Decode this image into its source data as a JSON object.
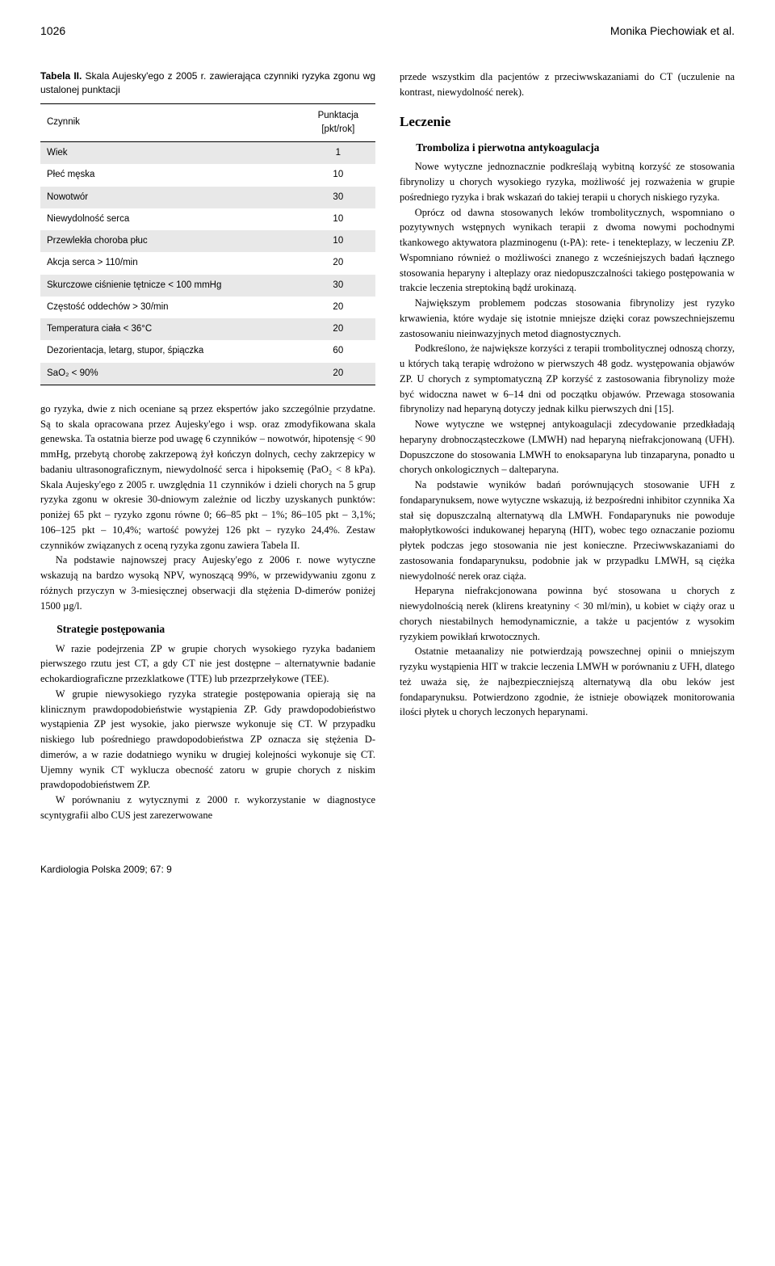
{
  "header": {
    "page_number": "1026",
    "authors": "Monika Piechowiak et al."
  },
  "table": {
    "label": "Tabela II.",
    "title_rest": " Skala Aujesky'ego z 2005 r. zawierająca czynniki ryzyka zgonu wg ustalonej punktacji",
    "col1": "Czynnik",
    "col2_line1": "Punktacja",
    "col2_line2": "[pkt/rok]",
    "rows": [
      {
        "label": "Wiek",
        "value": "1",
        "shaded": true
      },
      {
        "label": "Płeć męska",
        "value": "10",
        "shaded": false
      },
      {
        "label": "Nowotwór",
        "value": "30",
        "shaded": true
      },
      {
        "label": "Niewydolność serca",
        "value": "10",
        "shaded": false
      },
      {
        "label": "Przewlekła choroba płuc",
        "value": "10",
        "shaded": true
      },
      {
        "label": "Akcja serca > 110/min",
        "value": "20",
        "shaded": false
      },
      {
        "label": "Skurczowe ciśnienie tętnicze < 100 mmHg",
        "value": "30",
        "shaded": true
      },
      {
        "label": "Częstość oddechów > 30/min",
        "value": "20",
        "shaded": false
      },
      {
        "label": "Temperatura ciała < 36°C",
        "value": "20",
        "shaded": true
      },
      {
        "label": "Dezorientacja, letarg, stupor, śpiączka",
        "value": "60",
        "shaded": false
      },
      {
        "label": "SaO₂ < 90%",
        "value": "20",
        "shaded": true
      }
    ]
  },
  "left": {
    "p1": "go ryzyka, dwie z nich oceniane są przez ekspertów jako szczególnie przydatne. Są to skala opracowana przez Aujesky'ego i wsp. oraz zmodyfikowana skala genewska. Ta ostatnia bierze pod uwagę 6 czynników – nowotwór, hipotensję < 90 mmHg, przebytą chorobę zakrzepową żył kończyn dolnych, cechy zakrzepicy w badaniu ultrasonograficznym, niewydolność serca i hipoksemię (PaO₂ < 8 kPa). Skala Aujesky'ego z 2005 r. uwzględnia 11 czynników i dzieli chorych na 5 grup ryzyka zgonu w okresie 30-dniowym zależnie od liczby uzyskanych punktów: poniżej 65 pkt – ryzyko zgonu równe 0; 66–85 pkt – 1%; 86–105 pkt – 3,1%; 106–125 pkt – 10,4%; wartość powyżej 126 pkt – ryzyko 24,4%. Zestaw czynników związanych z oceną ryzyka zgonu zawiera Tabela II.",
    "p2": "Na podstawie najnowszej pracy Aujesky'ego z 2006 r. nowe wytyczne wskazują na bardzo wysoką NPV, wynoszącą 99%, w przewidywaniu zgonu z różnych przyczyn w 3-miesięcznej obserwacji dla stężenia D-dimerów poniżej 1500 µg/l.",
    "h_strategie": "Strategie postępowania",
    "p3": "W razie podejrzenia ZP w grupie chorych wysokiego ryzyka badaniem pierwszego rzutu jest CT, a gdy CT nie jest dostępne – alternatywnie badanie echokardiograficzne przezklatkowe (TTE) lub przezprzełykowe (TEE).",
    "p4": "W grupie niewysokiego ryzyka strategie postępowania opierają się na klinicznym prawdopodobieństwie wystąpienia ZP. Gdy prawdopodobieństwo wystąpienia ZP jest wysokie, jako pierwsze wykonuje się CT. W przypadku niskiego lub pośredniego prawdopodobieństwa ZP oznacza się stężenia D-dimerów, a w razie dodatniego wyniku w drugiej kolejności wykonuje się CT. Ujemny wynik CT wyklucza obecność zatoru w grupie chorych z niskim prawdopodobieństwem ZP.",
    "p5": "W porównaniu z wytycznymi z 2000 r. wykorzystanie w diagnostyce scyntygrafii albo CUS jest zarezerwowane"
  },
  "right": {
    "p1": "przede wszystkim dla pacjentów z przeciwwskazaniami do CT (uczulenie na kontrast, niewydolność nerek).",
    "h_leczenie": "Leczenie",
    "h_tromboliza": "Tromboliza i pierwotna antykoagulacja",
    "p2": "Nowe wytyczne jednoznacznie podkreślają wybitną korzyść ze stosowania fibrynolizy u chorych wysokiego ryzyka, możliwość jej rozważenia w grupie pośredniego ryzyka i brak wskazań do takiej terapii u chorych niskiego ryzyka.",
    "p3": "Oprócz od dawna stosowanych leków trombolitycznych, wspomniano o pozytywnych wstępnych wynikach terapii z dwoma nowymi pochodnymi tkankowego aktywatora plazminogenu (t-PA): rete- i tenekteplazy, w leczeniu ZP. Wspomniano również o możliwości znanego z wcześniejszych badań łącznego stosowania heparyny i alteplazy oraz niedopuszczalności takiego postępowania w trakcie leczenia streptokiną bądź urokinazą.",
    "p4": "Największym problemem podczas stosowania fibrynolizy jest ryzyko krwawienia, które wydaje się istotnie mniejsze dzięki coraz powszechniejszemu zastosowaniu nieinwazyjnych metod diagnostycznych.",
    "p5": "Podkreślono, że największe korzyści z terapii trombolitycznej odnoszą chorzy, u których taką terapię wdrożono w pierwszych 48 godz. występowania objawów ZP. U chorych z symptomatyczną ZP korzyść z zastosowania fibrynolizy może być widoczna nawet w 6–14 dni od początku objawów. Przewaga stosowania fibrynolizy nad heparyną dotyczy jednak kilku pierwszych dni [15].",
    "p6": "Nowe wytyczne we wstępnej antykoagulacji zdecydowanie przedkładają heparyny drobnocząsteczkowe (LMWH) nad heparyną niefrakcjonowaną (UFH). Dopuszczone do stosowania LMWH to enoksaparyna lub tinzaparyna, ponadto u chorych onkologicznych – dalteparyna.",
    "p7": "Na podstawie wyników badań porównujących stosowanie UFH z fondaparynuksem, nowe wytyczne wskazują, iż bezpośredni inhibitor czynnika Xa stał się dopuszczalną alternatywą dla LMWH. Fondaparynuks nie powoduje małopłytkowości indukowanej heparyną (HIT), wobec tego oznaczanie poziomu płytek podczas jego stosowania nie jest konieczne. Przeciwwskazaniami do zastosowania fondaparynuksu, podobnie jak w przypadku LMWH, są ciężka niewydolność nerek oraz ciąża.",
    "p8": "Heparyna niefrakcjonowana powinna być stosowana u chorych z niewydolnością nerek (klirens kreatyniny < 30 ml/min), u kobiet w ciąży oraz u chorych niestabilnych hemodynamicznie, a także u pacjentów z wysokim ryzykiem powikłań krwotocznych.",
    "p9": "Ostatnie metaanalizy nie potwierdzają powszechnej opinii o mniejszym ryzyku wystąpienia HIT w trakcie leczenia LMWH w porównaniu z UFH, dlatego też uważa się, że najbezpieczniejszą alternatywą dla obu leków jest fondaparynuksu. Potwierdzono zgodnie, że istnieje obowiązek monitorowania ilości płytek u chorych leczonych heparynami."
  },
  "footer": {
    "journal": "Kardiologia Polska 2009; 67: 9"
  }
}
